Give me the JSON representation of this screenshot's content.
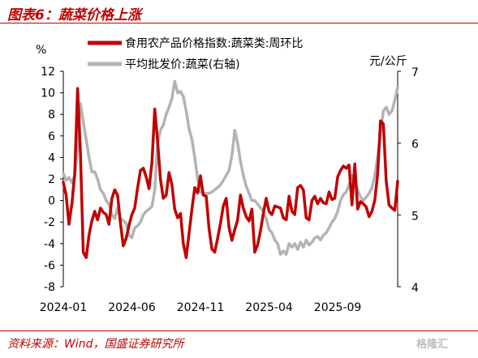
{
  "header": {
    "title": "图表6：蔬菜价格上涨"
  },
  "footer": {
    "source": "资料来源：Wind，国盛证券研究所",
    "logo_text": "格隆汇"
  },
  "colors": {
    "red": "#c00000",
    "gray": "#b3b3b3"
  },
  "chart_data": {
    "type": "line",
    "left_axis": {
      "unit": "%",
      "ticks": [
        12,
        10,
        8,
        6,
        4,
        2,
        0,
        -2,
        -4,
        -6,
        -8
      ],
      "ylim": [
        -8,
        12
      ]
    },
    "right_axis": {
      "unit": "元/公斤",
      "ticks": [
        7,
        6,
        5,
        4
      ],
      "ylim": [
        4,
        7
      ]
    },
    "x_ticks": [
      "2024-01",
      "2024-06",
      "2024-11",
      "2025-04",
      "2025-09"
    ],
    "legend": [
      "食用农产品价格指数:蔬菜类:周环比",
      "平均批发价:蔬菜(右轴)"
    ],
    "series": [
      {
        "name": "食用农产品价格指数:蔬菜类:周环比",
        "axis": "left",
        "color": "#c00000",
        "points": [
          [
            0,
            1.7
          ],
          [
            1,
            0.5
          ],
          [
            2,
            -2.2
          ],
          [
            3,
            -0.3
          ],
          [
            4,
            2.5
          ],
          [
            5,
            10.4
          ],
          [
            6,
            4.5
          ],
          [
            7,
            -4.8
          ],
          [
            8,
            -5.3
          ],
          [
            9,
            -3.2
          ],
          [
            10,
            -1.9
          ],
          [
            11,
            -1.0
          ],
          [
            12,
            -1.8
          ],
          [
            13,
            -0.7
          ],
          [
            14,
            -1.1
          ],
          [
            15,
            -1.3
          ],
          [
            16,
            -2.2
          ],
          [
            17,
            0.2
          ],
          [
            18,
            1.0
          ],
          [
            19,
            0.5
          ],
          [
            20,
            -2.1
          ],
          [
            21,
            -4.2
          ],
          [
            22,
            -3.5
          ],
          [
            23,
            -2.3
          ],
          [
            24,
            -1.3
          ],
          [
            25,
            -0.7
          ],
          [
            26,
            1.2
          ],
          [
            27,
            2.8
          ],
          [
            28,
            3.0
          ],
          [
            29,
            2.2
          ],
          [
            30,
            1.1
          ],
          [
            31,
            3.5
          ],
          [
            32,
            8.5
          ],
          [
            33,
            5.5
          ],
          [
            34,
            2.0
          ],
          [
            35,
            0.2
          ],
          [
            36,
            0.5
          ],
          [
            37,
            2.6
          ],
          [
            38,
            1.5
          ],
          [
            39,
            -0.8
          ],
          [
            40,
            -1.6
          ],
          [
            41,
            -1.2
          ],
          [
            42,
            -4.0
          ],
          [
            43,
            -5.3
          ],
          [
            44,
            -3.1
          ],
          [
            45,
            -0.8
          ],
          [
            46,
            1.2
          ],
          [
            47,
            0.7
          ],
          [
            48,
            2.3
          ],
          [
            49,
            0.5
          ],
          [
            50,
            0.4
          ],
          [
            51,
            -2.6
          ],
          [
            52,
            -4.5
          ],
          [
            53,
            -4.8
          ],
          [
            54,
            -3.5
          ],
          [
            55,
            -2.1
          ],
          [
            56,
            -0.5
          ],
          [
            57,
            0.2
          ],
          [
            58,
            -2.5
          ],
          [
            59,
            -3.7
          ],
          [
            60,
            -2.7
          ],
          [
            61,
            -1.8
          ],
          [
            62,
            0.5
          ],
          [
            63,
            -0.7
          ],
          [
            64,
            -1.5
          ],
          [
            65,
            -1.9
          ],
          [
            66,
            -0.8
          ],
          [
            67,
            -4.8
          ],
          [
            68,
            -4.1
          ],
          [
            69,
            -2.8
          ],
          [
            70,
            -1.2
          ],
          [
            71,
            0.2
          ],
          [
            72,
            -1.0
          ],
          [
            73,
            -1.3
          ],
          [
            74,
            -0.5
          ],
          [
            75,
            -0.6
          ],
          [
            76,
            -0.7
          ],
          [
            77,
            -1.6
          ],
          [
            78,
            -1.8
          ],
          [
            79,
            0.4
          ],
          [
            80,
            -1.0
          ],
          [
            81,
            -1.3
          ],
          [
            82,
            1.2
          ],
          [
            83,
            1.4
          ],
          [
            84,
            1.0
          ],
          [
            85,
            -1.6
          ],
          [
            86,
            -1.8
          ],
          [
            87,
            0.0
          ],
          [
            88,
            0.4
          ],
          [
            89,
            -0.3
          ],
          [
            90,
            0.2
          ],
          [
            91,
            -0.2
          ],
          [
            92,
            -0.3
          ],
          [
            93,
            0.8
          ],
          [
            94,
            0.1
          ],
          [
            95,
            0.2
          ],
          [
            96,
            2.2
          ],
          [
            97,
            2.8
          ],
          [
            98,
            3.2
          ],
          [
            99,
            3.0
          ],
          [
            100,
            3.3
          ],
          [
            101,
            -0.4
          ],
          [
            102,
            3.4
          ],
          [
            103,
            -0.8
          ],
          [
            104,
            -0.1
          ],
          [
            105,
            -0.3
          ],
          [
            106,
            -0.6
          ],
          [
            107,
            -1.5
          ],
          [
            108,
            -1.0
          ],
          [
            109,
            0.0
          ],
          [
            110,
            2.5
          ],
          [
            111,
            7.4
          ],
          [
            112,
            7.1
          ],
          [
            113,
            1.8
          ],
          [
            114,
            -0.4
          ],
          [
            115,
            -0.7
          ],
          [
            116,
            -0.9
          ],
          [
            117,
            1.8
          ]
        ]
      },
      {
        "name": "平均批发价:蔬菜(右轴)",
        "axis": "right",
        "color": "#b3b3b3",
        "points": [
          [
            0,
            5.58
          ],
          [
            1,
            5.48
          ],
          [
            2,
            5.52
          ],
          [
            3,
            5.45
          ],
          [
            4,
            5.55
          ],
          [
            5,
            5.92
          ],
          [
            6,
            6.55
          ],
          [
            7,
            6.3
          ],
          [
            8,
            6.05
          ],
          [
            9,
            5.8
          ],
          [
            10,
            5.6
          ],
          [
            11,
            5.6
          ],
          [
            12,
            5.5
          ],
          [
            13,
            5.35
          ],
          [
            14,
            5.3
          ],
          [
            15,
            5.2
          ],
          [
            16,
            5.15
          ],
          [
            17,
            5.0
          ],
          [
            18,
            4.95
          ],
          [
            19,
            5.1
          ],
          [
            20,
            4.95
          ],
          [
            21,
            4.92
          ],
          [
            22,
            4.88
          ],
          [
            23,
            4.72
          ],
          [
            24,
            4.68
          ],
          [
            25,
            4.82
          ],
          [
            26,
            4.85
          ],
          [
            27,
            4.9
          ],
          [
            28,
            5.0
          ],
          [
            29,
            5.05
          ],
          [
            30,
            5.08
          ],
          [
            31,
            5.12
          ],
          [
            32,
            5.35
          ],
          [
            33,
            6.0
          ],
          [
            34,
            6.18
          ],
          [
            35,
            6.25
          ],
          [
            36,
            6.4
          ],
          [
            37,
            6.5
          ],
          [
            38,
            6.62
          ],
          [
            39,
            6.86
          ],
          [
            40,
            6.7
          ],
          [
            41,
            6.72
          ],
          [
            42,
            6.65
          ],
          [
            43,
            6.45
          ],
          [
            44,
            6.2
          ],
          [
            45,
            6.05
          ],
          [
            46,
            5.8
          ],
          [
            47,
            5.5
          ],
          [
            48,
            5.32
          ],
          [
            49,
            5.3
          ],
          [
            50,
            5.3
          ],
          [
            51,
            5.3
          ],
          [
            52,
            5.32
          ],
          [
            53,
            5.35
          ],
          [
            54,
            5.38
          ],
          [
            55,
            5.42
          ],
          [
            56,
            5.48
          ],
          [
            57,
            5.55
          ],
          [
            58,
            5.62
          ],
          [
            59,
            5.83
          ],
          [
            60,
            6.18
          ],
          [
            61,
            6.0
          ],
          [
            62,
            5.75
          ],
          [
            63,
            5.55
          ],
          [
            64,
            5.4
          ],
          [
            65,
            5.3
          ],
          [
            66,
            5.2
          ],
          [
            67,
            5.2
          ],
          [
            68,
            5.15
          ],
          [
            69,
            5.1
          ],
          [
            70,
            5.05
          ],
          [
            71,
            4.95
          ],
          [
            72,
            4.8
          ],
          [
            73,
            4.75
          ],
          [
            74,
            4.65
          ],
          [
            75,
            4.6
          ],
          [
            76,
            4.45
          ],
          [
            77,
            4.5
          ],
          [
            78,
            4.45
          ],
          [
            79,
            4.6
          ],
          [
            80,
            4.55
          ],
          [
            81,
            4.6
          ],
          [
            82,
            4.52
          ],
          [
            83,
            4.62
          ],
          [
            84,
            4.55
          ],
          [
            85,
            4.65
          ],
          [
            86,
            4.58
          ],
          [
            87,
            4.62
          ],
          [
            88,
            4.68
          ],
          [
            89,
            4.7
          ],
          [
            90,
            4.65
          ],
          [
            91,
            4.72
          ],
          [
            92,
            4.75
          ],
          [
            93,
            4.82
          ],
          [
            94,
            4.9
          ],
          [
            95,
            4.95
          ],
          [
            96,
            5.05
          ],
          [
            97,
            5.2
          ],
          [
            98,
            5.28
          ],
          [
            99,
            5.32
          ],
          [
            100,
            5.42
          ],
          [
            101,
            5.55
          ],
          [
            102,
            5.48
          ],
          [
            103,
            5.35
          ],
          [
            104,
            5.25
          ],
          [
            105,
            5.2
          ],
          [
            106,
            5.25
          ],
          [
            107,
            5.3
          ],
          [
            108,
            5.38
          ],
          [
            109,
            5.55
          ],
          [
            110,
            5.82
          ],
          [
            111,
            6.15
          ],
          [
            112,
            6.45
          ],
          [
            113,
            6.5
          ],
          [
            114,
            6.4
          ],
          [
            115,
            6.45
          ],
          [
            116,
            6.6
          ],
          [
            117,
            6.78
          ]
        ]
      }
    ],
    "x_range": [
      0,
      117
    ],
    "x_tick_positions": [
      0,
      24,
      48,
      72,
      96
    ]
  }
}
